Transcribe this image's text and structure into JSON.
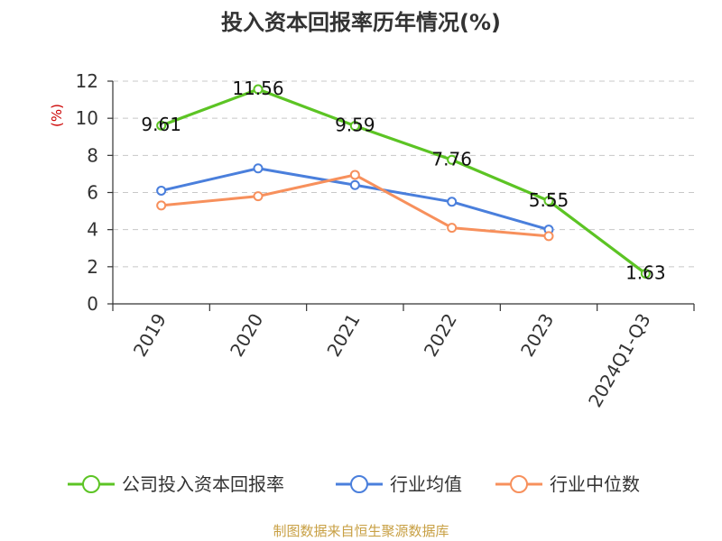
{
  "chart_data": {
    "type": "line",
    "title": "投入资本回报率历年情况(%)",
    "ylabel": "(%)",
    "categories": [
      "2019",
      "2020",
      "2021",
      "2022",
      "2023",
      "2024Q1-Q3"
    ],
    "ylim": [
      0,
      12
    ],
    "yticks": [
      0,
      2,
      4,
      6,
      8,
      10,
      12
    ],
    "grid": true,
    "legend_position": "bottom",
    "series": [
      {
        "name": "公司投入资本回报率",
        "color": "#5cc424",
        "values": [
          9.61,
          11.56,
          9.59,
          7.76,
          5.55,
          1.63
        ],
        "data_labels": [
          "9.61",
          "11.56",
          "9.59",
          "7.76",
          "5.55",
          "1.63"
        ]
      },
      {
        "name": "行业均值",
        "color": "#4a7fdc",
        "values": [
          6.1,
          7.3,
          6.4,
          5.5,
          4.0,
          null
        ]
      },
      {
        "name": "行业中位数",
        "color": "#f7905c",
        "values": [
          5.3,
          5.8,
          6.95,
          4.1,
          3.65,
          null
        ]
      }
    ],
    "source": "制图数据来自恒生聚源数据库"
  }
}
